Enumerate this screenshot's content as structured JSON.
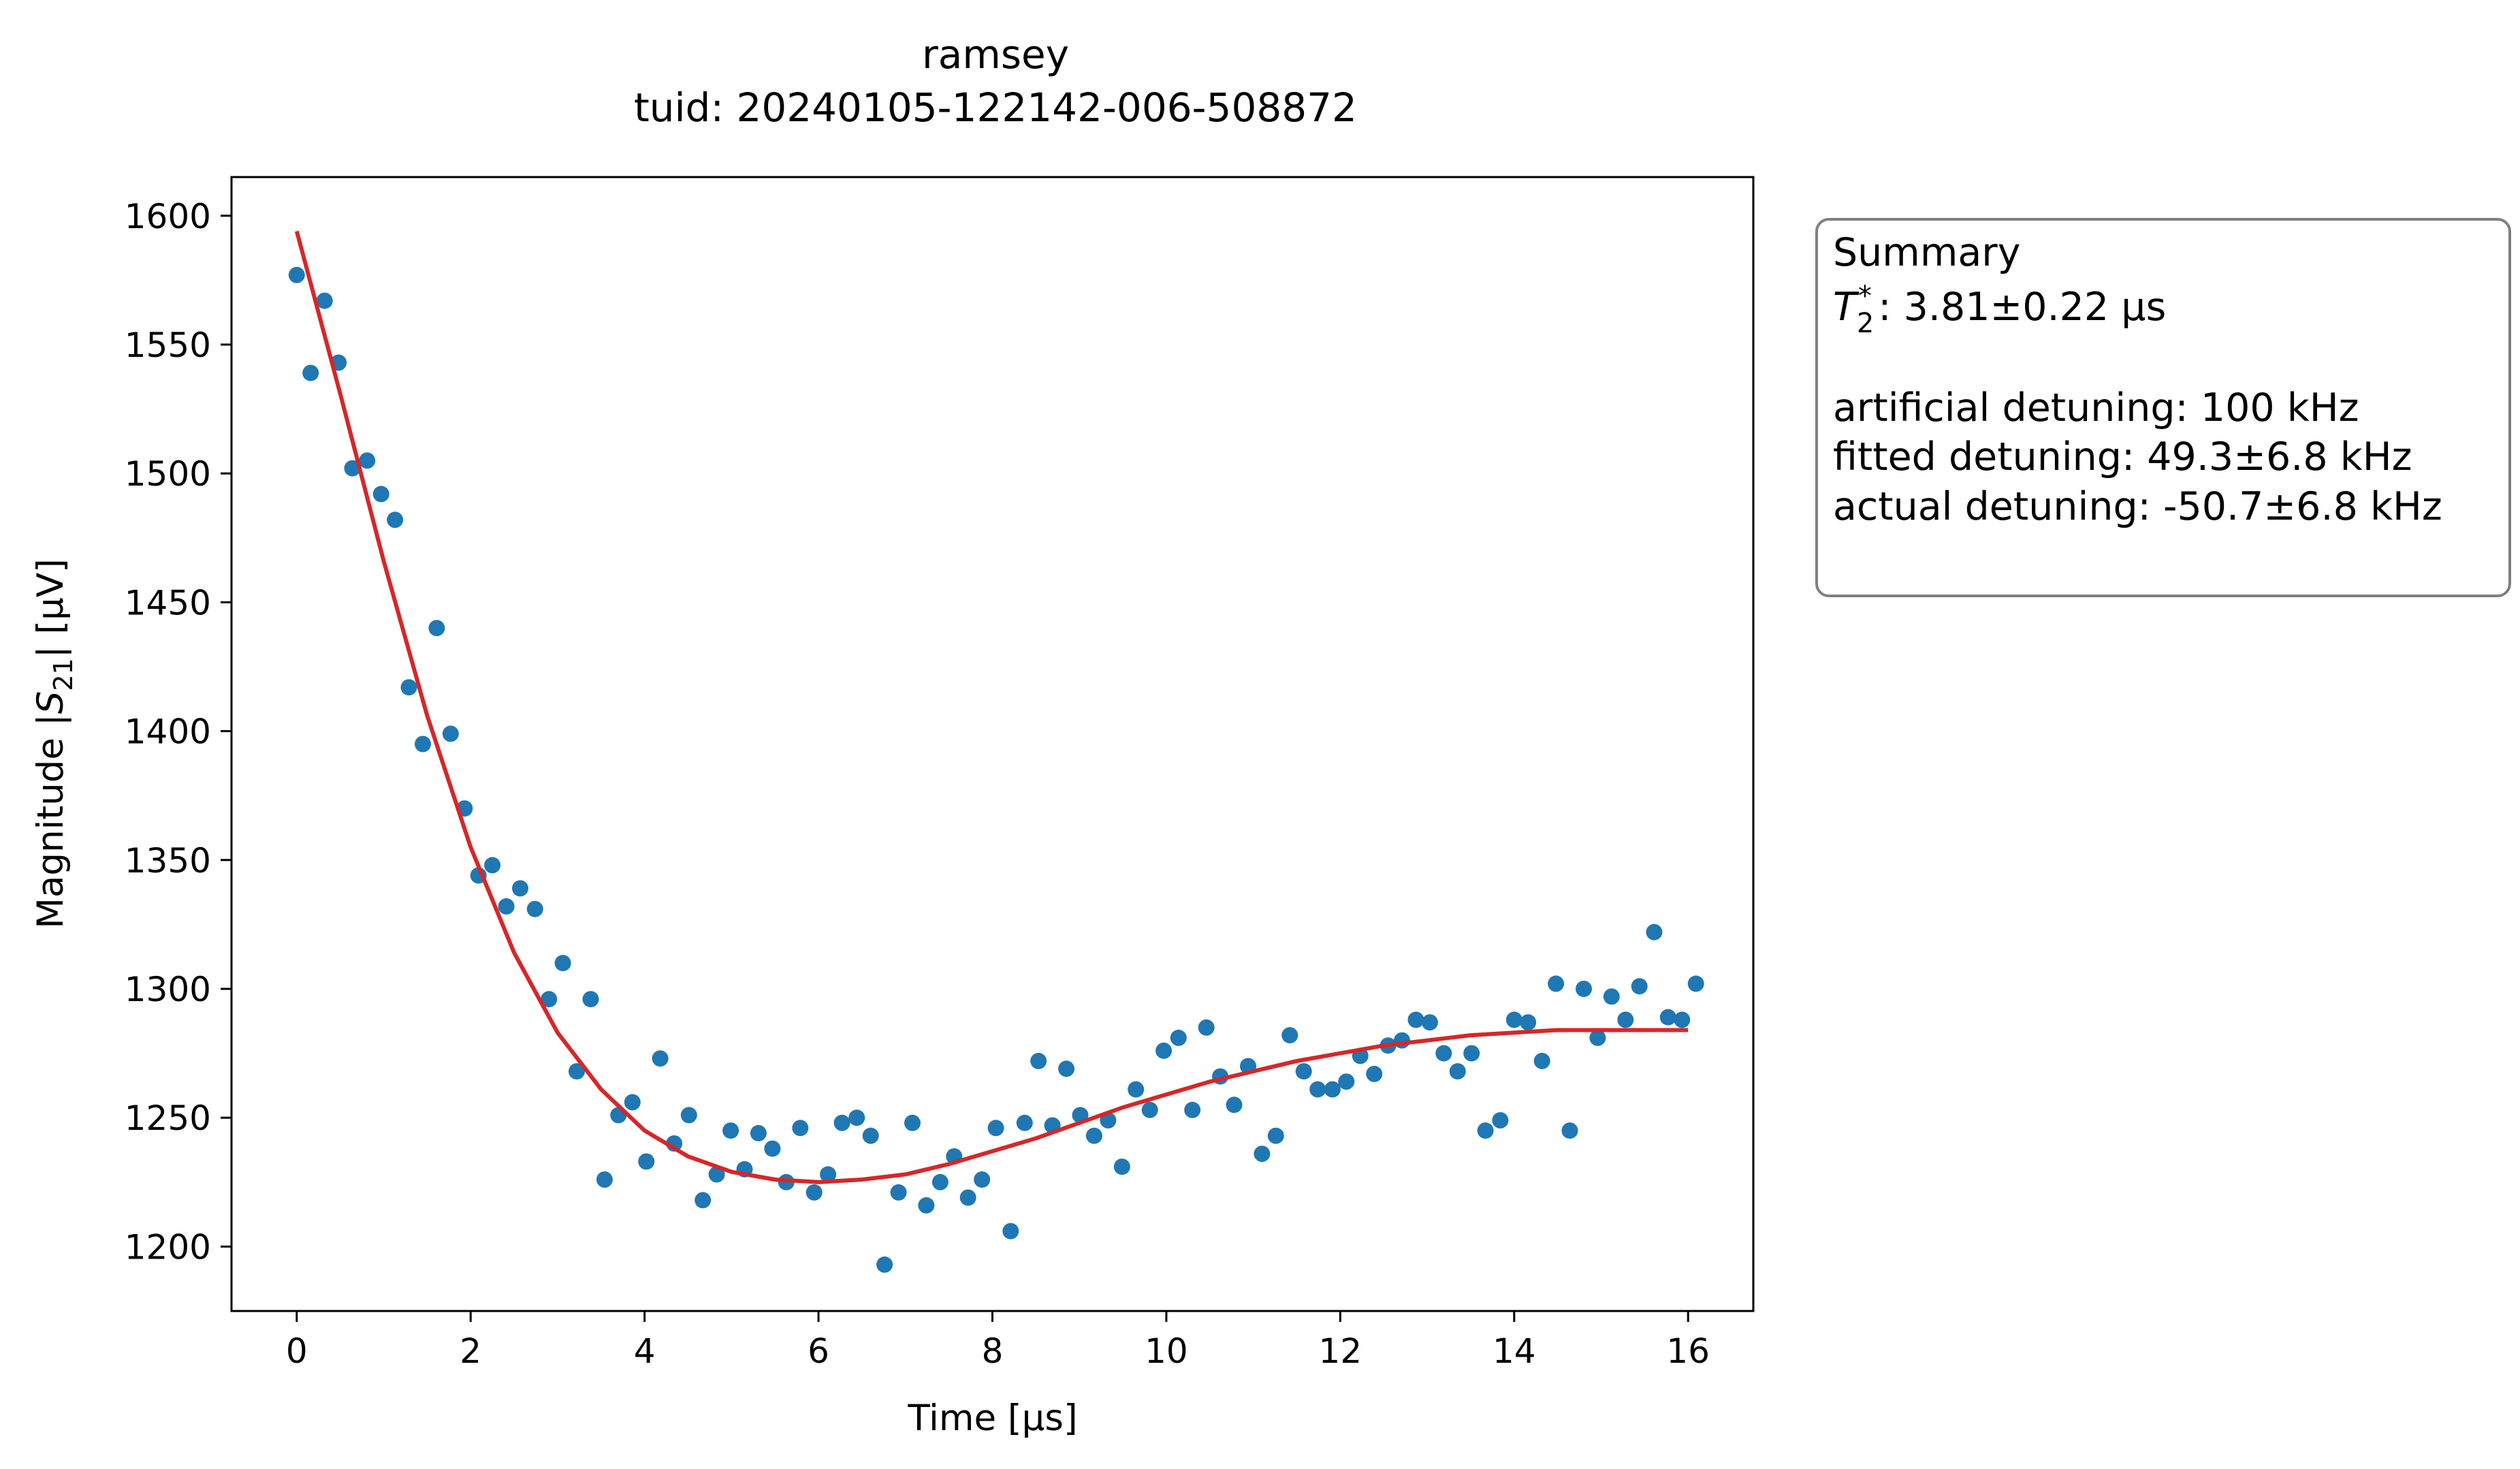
{
  "chart_data": {
    "type": "scatter",
    "title": "ramsey",
    "subtitle": "tuid: 20240105-122142-006-508872",
    "xlabel": "Time [µs]",
    "ylabel": {
      "prefix": "Magnitude |",
      "symbol": "S",
      "subscript": "21",
      "suffix": "| [µV]"
    },
    "xlim": [
      -0.75,
      16.75
    ],
    "ylim": [
      1175,
      1615
    ],
    "xticks": [
      0,
      2,
      4,
      6,
      8,
      10,
      12,
      14,
      16
    ],
    "yticks": [
      1200,
      1250,
      1300,
      1350,
      1400,
      1450,
      1500,
      1550,
      1600
    ],
    "grid": false,
    "series": [
      {
        "kind": "points",
        "color": "#1f77b4",
        "x": [
          0.0,
          0.16,
          0.32,
          0.48,
          0.64,
          0.81,
          0.97,
          1.13,
          1.29,
          1.45,
          1.61,
          1.77,
          1.93,
          2.09,
          2.25,
          2.41,
          2.57,
          2.74,
          2.9,
          3.06,
          3.22,
          3.38,
          3.54,
          3.7,
          3.86,
          4.02,
          4.18,
          4.34,
          4.51,
          4.67,
          4.83,
          4.99,
          5.15,
          5.31,
          5.47,
          5.63,
          5.79,
          5.95,
          6.11,
          6.27,
          6.44,
          6.6,
          6.76,
          6.92,
          7.08,
          7.24,
          7.4,
          7.56,
          7.72,
          7.88,
          8.04,
          8.21,
          8.37,
          8.53,
          8.69,
          8.85,
          9.01,
          9.17,
          9.33,
          9.49,
          9.65,
          9.81,
          9.97,
          10.14,
          10.3,
          10.46,
          10.62,
          10.78,
          10.94,
          11.1,
          11.26,
          11.42,
          11.58,
          11.74,
          11.91,
          12.07,
          12.23,
          12.39,
          12.55,
          12.71,
          12.87,
          13.03,
          13.19,
          13.35,
          13.51,
          13.67,
          13.84,
          14.0,
          14.16,
          14.32,
          14.48,
          14.64,
          14.8,
          14.96,
          15.12,
          15.28,
          15.44,
          15.61,
          15.77,
          15.93,
          16.09
        ],
        "y": [
          1577,
          1539,
          1567,
          1543,
          1502,
          1505,
          1492,
          1482,
          1417,
          1395,
          1440,
          1399,
          1370,
          1344,
          1348,
          1332,
          1339,
          1331,
          1296,
          1310,
          1268,
          1296,
          1226,
          1251,
          1256,
          1233,
          1273,
          1240,
          1251,
          1218,
          1228,
          1245,
          1230,
          1244,
          1238,
          1225,
          1246,
          1221,
          1228,
          1248,
          1250,
          1243,
          1193,
          1221,
          1248,
          1216,
          1225,
          1235,
          1219,
          1226,
          1246,
          1206,
          1248,
          1272,
          1247,
          1269,
          1251,
          1243,
          1249,
          1231,
          1261,
          1253,
          1276,
          1281,
          1253,
          1285,
          1266,
          1255,
          1270,
          1236,
          1243,
          1282,
          1268,
          1261,
          1261,
          1264,
          1274,
          1267,
          1278,
          1280,
          1288,
          1287,
          1275,
          1268,
          1275,
          1245,
          1249,
          1288,
          1287,
          1272,
          1302,
          1245,
          1300,
          1281,
          1297,
          1288,
          1301,
          1322,
          1289,
          1288,
          1302
        ]
      },
      {
        "kind": "line",
        "color": "#d62728",
        "x": [
          0.0,
          0.5,
          1.0,
          1.5,
          2.0,
          2.5,
          3.0,
          3.5,
          4.0,
          4.5,
          5.0,
          5.5,
          6.0,
          6.5,
          7.0,
          7.5,
          8.0,
          8.5,
          9.0,
          9.5,
          10.0,
          10.5,
          11.0,
          11.5,
          12.0,
          12.5,
          13.0,
          13.5,
          14.0,
          14.5,
          15.0,
          15.5,
          16.0
        ],
        "y": [
          1594,
          1531,
          1466,
          1406,
          1355,
          1314,
          1283,
          1261,
          1245,
          1235,
          1229,
          1226,
          1225,
          1226,
          1228,
          1232,
          1237,
          1242,
          1248,
          1254,
          1259,
          1264,
          1268,
          1272,
          1275,
          1278,
          1280,
          1282,
          1283,
          1284,
          1284,
          1284,
          1284
        ]
      }
    ]
  },
  "summary": {
    "heading": "Summary",
    "t2_symbol": "T",
    "t2_subscript": "2",
    "t2_superscript": "*",
    "t2_value": ": 3.81±0.22 µs",
    "artificial_detuning": "artificial detuning: 100 kHz",
    "fitted_detuning": "fitted detuning: 49.3±6.8 kHz",
    "actual_detuning": "actual detuning: -50.7±6.8 kHz"
  }
}
